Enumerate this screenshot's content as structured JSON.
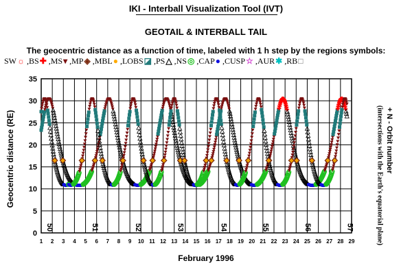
{
  "header": {
    "title": "IKI - Interball Visualization Tool (IVT)",
    "subtitle": "GEOTAIL & INTERBALL TAIL",
    "description": "The geocentric distance as a function of time, labeled with 1 h step by the regions symbols:"
  },
  "legend": [
    {
      "name": "SW",
      "symbol": "sun",
      "color": "#ff2020"
    },
    {
      "name": "BS",
      "symbol": "cross",
      "color": "#ff0000"
    },
    {
      "name": "MS",
      "symbol": "triangle-down",
      "color": "#7a1010"
    },
    {
      "name": "MP",
      "symbol": "diamond",
      "color": "#7a2a10"
    },
    {
      "name": "MBL",
      "symbol": "circle",
      "color": "#ffaa00"
    },
    {
      "name": "LOBS",
      "symbol": "square-half",
      "color": "#207a7a"
    },
    {
      "name": "PS",
      "symbol": "triangle-open",
      "color": "#000000"
    },
    {
      "name": "NS",
      "symbol": "circle-open",
      "color": "#20c020"
    },
    {
      "name": "CAP",
      "symbol": "circle-filled",
      "color": "#1010e0"
    },
    {
      "name": "CUSP",
      "symbol": "star",
      "color": "#d040d0"
    },
    {
      "name": "AUR",
      "symbol": "asterisk",
      "color": "#00c0c0"
    },
    {
      "name": "RB",
      "symbol": "square-open",
      "color": "#707070"
    }
  ],
  "chart_data": {
    "type": "scatter",
    "xlabel": "February 1996",
    "ylabel": "Geocentric distance (RE)",
    "right_label_1": "+ N - Orbit number",
    "right_label_2": "(intersections with the Earth's equatorial plane)",
    "xlim": [
      1,
      29
    ],
    "ylim": [
      0,
      35
    ],
    "x_ticks": [
      1,
      2,
      3,
      4,
      5,
      6,
      7,
      8,
      9,
      10,
      11,
      12,
      13,
      14,
      15,
      16,
      17,
      18,
      19,
      20,
      21,
      22,
      23,
      24,
      25,
      26,
      27,
      28,
      29
    ],
    "y_ticks": [
      0,
      5,
      10,
      15,
      20,
      25,
      30,
      35
    ],
    "grid": true,
    "series": [
      {
        "name": "GEOTAIL",
        "period_days": 5.2,
        "apogee": 30.5,
        "perigee": 10.8,
        "apogee_times": [
          1.7,
          7.1,
          12.3,
          17.6,
          22.8,
          28.1
        ]
      },
      {
        "name": "INTERBALL TAIL",
        "period_days": 3.85,
        "apogee": 30.5,
        "perigee": 10.8,
        "apogee_times": [
          1.3,
          5.6,
          9.3,
          13.0,
          16.8,
          20.6,
          24.5,
          28.4
        ]
      }
    ],
    "orbit_numbers": [
      {
        "label": "50",
        "x": 1.3
      },
      {
        "label": "51",
        "x": 5.4
      },
      {
        "label": "52",
        "x": 9.3
      },
      {
        "label": "53",
        "x": 13.1
      },
      {
        "label": "54",
        "x": 17.0
      },
      {
        "label": "55",
        "x": 20.8
      },
      {
        "label": "56",
        "x": 24.6
      },
      {
        "label": "57",
        "x": 28.4
      }
    ]
  }
}
